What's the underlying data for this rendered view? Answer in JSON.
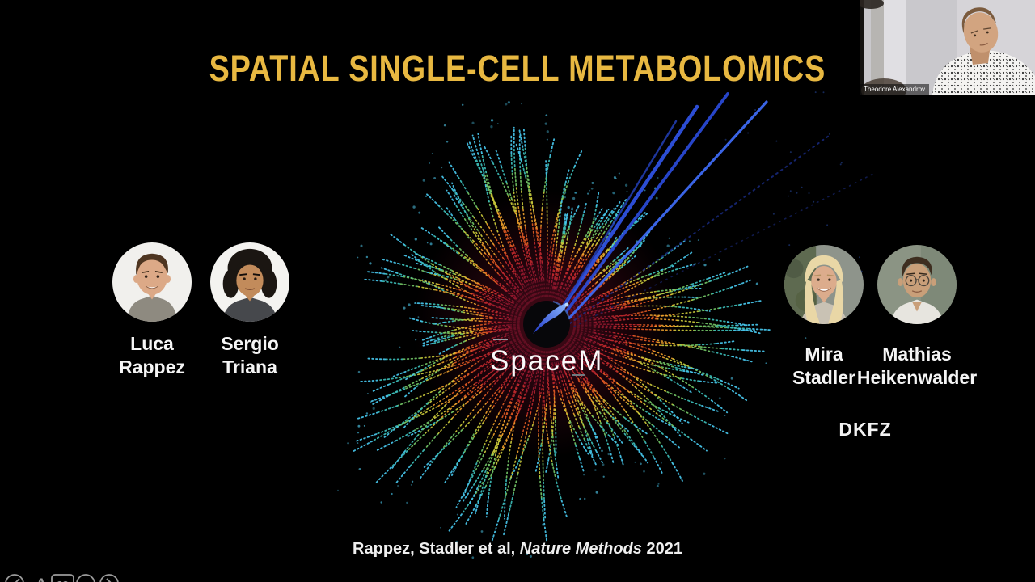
{
  "slide": {
    "title": "SPATIAL SINGLE-CELL METABOLOMICS",
    "title_color": "#E8B841",
    "logo_text": "SpaceM",
    "affiliation": "DKFZ",
    "citation": {
      "prefix": "Rappez, Stadler et al, ",
      "journal": "Nature Methods",
      "year": " 2021"
    }
  },
  "people": {
    "left": [
      {
        "first": "Luca",
        "last": "Rappez"
      },
      {
        "first": "Sergio",
        "last": "Triana"
      }
    ],
    "right": [
      {
        "first": "Mira",
        "last": "Stadler"
      },
      {
        "first": "Mathias",
        "last": "Heikenwalder"
      }
    ]
  },
  "webcam": {
    "name_tag": "Theodore Alexandrov"
  },
  "controls": {
    "font_glyph": "A",
    "captions_glyph": "CC"
  },
  "viz": {
    "background": "#000000",
    "stops": [
      {
        "t": 0.0,
        "c": "#4F0C1E"
      },
      {
        "t": 0.14,
        "c": "#8E1630"
      },
      {
        "t": 0.3,
        "c": "#C62B2B"
      },
      {
        "t": 0.44,
        "c": "#E8731F"
      },
      {
        "t": 0.56,
        "c": "#EFC937"
      },
      {
        "t": 0.67,
        "c": "#9FC93F"
      },
      {
        "t": 0.78,
        "c": "#3FBD8F"
      },
      {
        "t": 0.89,
        "c": "#38BCE6"
      },
      {
        "t": 1.0,
        "c": "#55D0F2"
      }
    ],
    "jet_colors": [
      "#2F52E0",
      "#2A49D4",
      "#3E6AF2",
      "#2440B8",
      "#1A2C86",
      "#14215F"
    ],
    "hole_color": "#07070A",
    "comet_light": "#8FBCFF",
    "comet_dark": "#2038C8"
  }
}
